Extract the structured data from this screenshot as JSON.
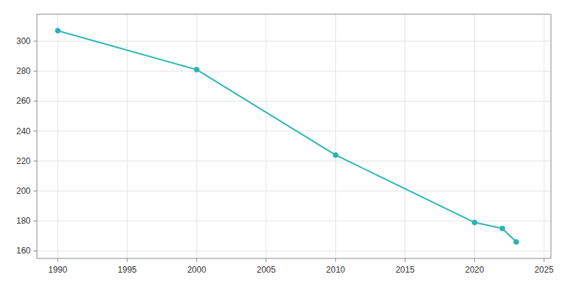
{
  "chart_data": {
    "type": "line",
    "x": [
      1990,
      2000,
      2010,
      2020,
      2022,
      2023
    ],
    "values": [
      307,
      281,
      224,
      179,
      175,
      166
    ],
    "color": "#2ab5b5",
    "marker": "circle",
    "xlim": [
      1988.5,
      2025.5
    ],
    "ylim": [
      155,
      318
    ],
    "xticks": [
      1990,
      1995,
      2000,
      2005,
      2010,
      2015,
      2020,
      2025
    ],
    "yticks": [
      160,
      180,
      200,
      220,
      240,
      260,
      280,
      300
    ],
    "grid": true
  }
}
